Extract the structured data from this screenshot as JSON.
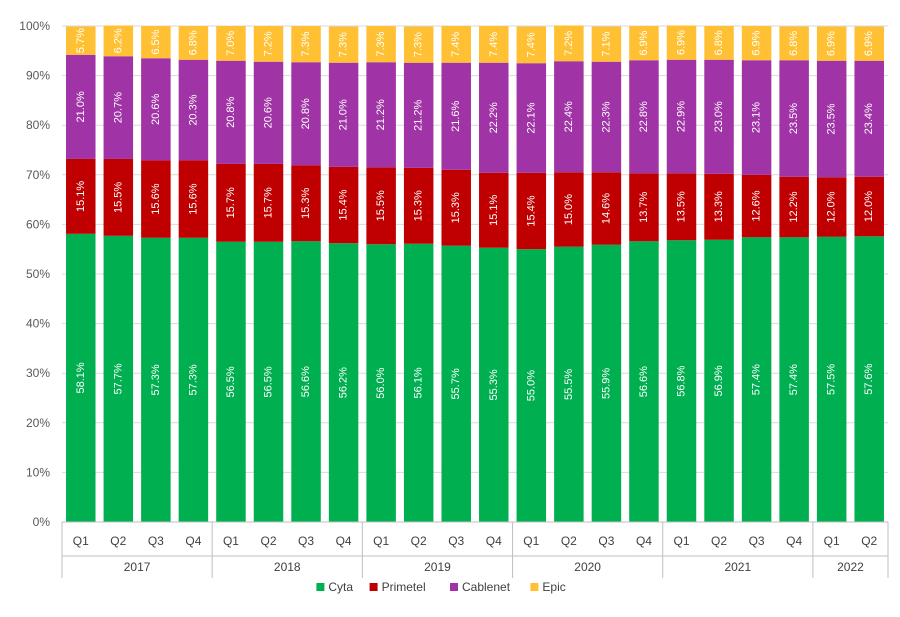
{
  "chart_data": {
    "type": "bar",
    "stacked": true,
    "title": "",
    "xlabel": "",
    "ylabel": "",
    "ylim": [
      0,
      100
    ],
    "y_ticks": [
      "0%",
      "10%",
      "20%",
      "30%",
      "40%",
      "50%",
      "60%",
      "70%",
      "80%",
      "90%",
      "100%"
    ],
    "categories": [
      "Q1",
      "Q2",
      "Q3",
      "Q4",
      "Q1",
      "Q2",
      "Q3",
      "Q4",
      "Q1",
      "Q2",
      "Q3",
      "Q4",
      "Q1",
      "Q2",
      "Q3",
      "Q4",
      "Q1",
      "Q2",
      "Q3",
      "Q4",
      "Q1",
      "Q2"
    ],
    "years": [
      {
        "label": "2017",
        "count": 4
      },
      {
        "label": "2018",
        "count": 4
      },
      {
        "label": "2019",
        "count": 4
      },
      {
        "label": "2020",
        "count": 4
      },
      {
        "label": "2021",
        "count": 4
      },
      {
        "label": "2022",
        "count": 2
      }
    ],
    "series": [
      {
        "name": "Cyta",
        "color": "#00b050",
        "values": [
          58.1,
          57.7,
          57.3,
          57.3,
          56.5,
          56.5,
          56.6,
          56.2,
          56.0,
          56.1,
          55.7,
          55.3,
          55.0,
          55.5,
          55.9,
          56.6,
          56.8,
          56.9,
          57.4,
          57.4,
          57.5,
          57.6
        ],
        "labels": [
          "58.1%",
          "57.7%",
          "57.3%",
          "57.3%",
          "56.5%",
          "56.5%",
          "56.6%",
          "56.2%",
          "56.0%",
          "56.1%",
          "55.7%",
          "55.3%",
          "55.0%",
          "55.5%",
          "55.9%",
          "56.6%",
          "56.8%",
          "56.9%",
          "57.4%",
          "57.4%",
          "57.5%",
          "57.6%"
        ]
      },
      {
        "name": "Primetel",
        "color": "#c00000",
        "values": [
          15.1,
          15.5,
          15.6,
          15.6,
          15.7,
          15.7,
          15.3,
          15.4,
          15.5,
          15.3,
          15.3,
          15.1,
          15.4,
          15.0,
          14.6,
          13.7,
          13.5,
          13.3,
          12.6,
          12.2,
          12.0,
          12.0
        ],
        "labels": [
          "15.1%",
          "15.5%",
          "15.6%",
          "15.6%",
          "15.7%",
          "15.7%",
          "15.3%",
          "15.4%",
          "15.5%",
          "15.3%",
          "15.3%",
          "15.1%",
          "15.4%",
          "15.0%",
          "14.6%",
          "13.7%",
          "13.5%",
          "13.3%",
          "12.6%",
          "12.2%",
          "12.0%",
          "12.0%"
        ]
      },
      {
        "name": "Cablenet",
        "color": "#a033a6",
        "values": [
          21.0,
          20.7,
          20.6,
          20.3,
          20.8,
          20.6,
          20.8,
          21.0,
          21.2,
          21.2,
          21.6,
          22.2,
          22.1,
          22.4,
          22.3,
          22.8,
          22.9,
          23.0,
          23.1,
          23.5,
          23.5,
          23.4
        ],
        "labels": [
          "21.0%",
          "20.7%",
          "20.6%",
          "20.3%",
          "20.8%",
          "20.6%",
          "20.8%",
          "21.0%",
          "21.2%",
          "21.2%",
          "21.6%",
          "22.2%",
          "22.1%",
          "22.4%",
          "22.3%",
          "22.8%",
          "22.9%",
          "23.0%",
          "23.1%",
          "23.5%",
          "23.5%",
          "23.4%"
        ]
      },
      {
        "name": "Epic",
        "color": "#ffc133",
        "values": [
          5.7,
          6.2,
          6.5,
          6.8,
          7.0,
          7.2,
          7.3,
          7.3,
          7.3,
          7.3,
          7.4,
          7.4,
          7.4,
          7.2,
          7.1,
          6.9,
          6.9,
          6.8,
          6.9,
          6.8,
          6.9,
          6.9
        ],
        "labels": [
          "5.7%",
          "6.2%",
          "6.5%",
          "6.8%",
          "7.0%",
          "7.2%",
          "7.3%",
          "7.3%",
          "7.3%",
          "7.3%",
          "7.4%",
          "7.4%",
          "7.4%",
          "7.2%",
          "7.1%",
          "6.9%",
          "6.9%",
          "6.8%",
          "6.9%",
          "6.8%",
          "6.9%",
          "6.9%"
        ]
      }
    ],
    "legend": {
      "position": "bottom",
      "entries": [
        "Cyta",
        "Primetel",
        "Cablenet",
        "Epic"
      ]
    },
    "grid": true
  }
}
